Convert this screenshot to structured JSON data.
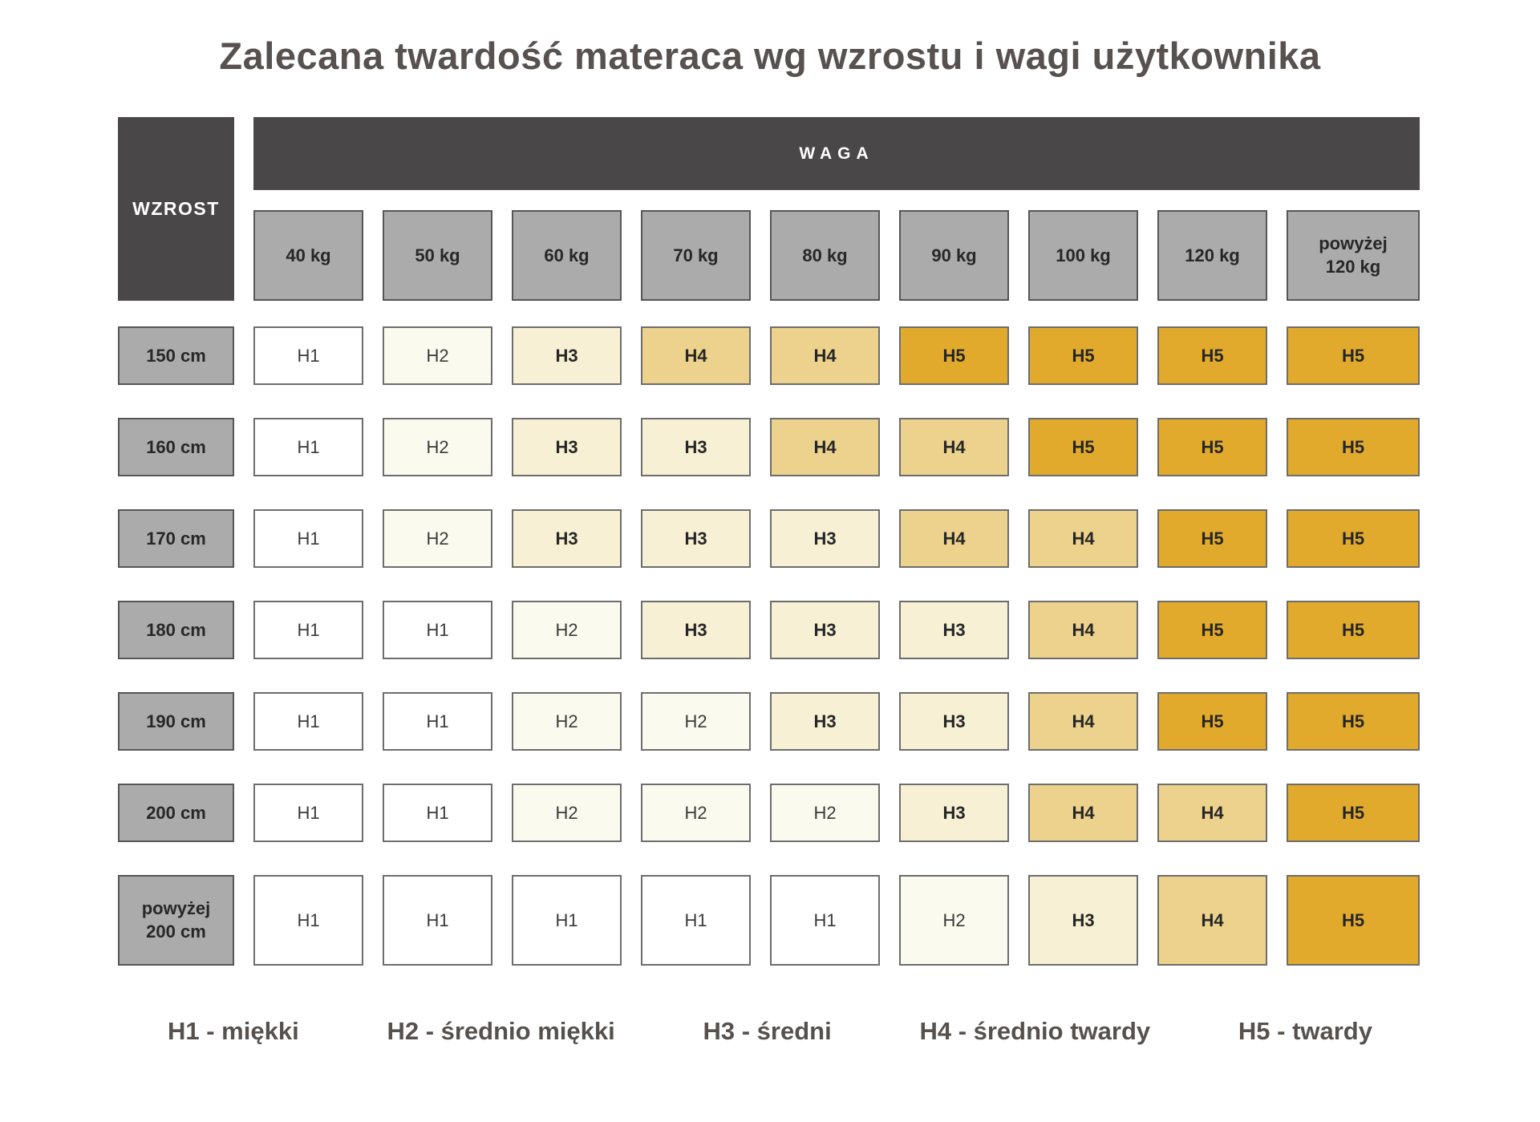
{
  "title": "Zalecana twardość materaca wg wzrostu i wagi użytkownika",
  "header": {
    "corner_label": "WZROST",
    "weight_label": "WAGA"
  },
  "chart_data": {
    "type": "heatmap",
    "title": "Zalecana twardość materaca wg wzrostu i wagi użytkownika",
    "xlabel": "WAGA",
    "ylabel": "WZROST",
    "x_categories": [
      "40 kg",
      "50 kg",
      "60 kg",
      "70 kg",
      "80 kg",
      "90 kg",
      "100 kg",
      "120 kg",
      "powyżej\n120 kg"
    ],
    "y_categories": [
      "150 cm",
      "160 cm",
      "170 cm",
      "180 cm",
      "190 cm",
      "200 cm",
      "powyżej\n200 cm"
    ],
    "values": [
      [
        "H1",
        "H2",
        "H3",
        "H4",
        "H4",
        "H5",
        "H5",
        "H5",
        "H5"
      ],
      [
        "H1",
        "H2",
        "H3",
        "H3",
        "H4",
        "H4",
        "H5",
        "H5",
        "H5"
      ],
      [
        "H1",
        "H2",
        "H3",
        "H3",
        "H3",
        "H4",
        "H4",
        "H5",
        "H5"
      ],
      [
        "H1",
        "H1",
        "H2",
        "H3",
        "H3",
        "H3",
        "H4",
        "H5",
        "H5"
      ],
      [
        "H1",
        "H1",
        "H2",
        "H2",
        "H3",
        "H3",
        "H4",
        "H5",
        "H5"
      ],
      [
        "H1",
        "H1",
        "H2",
        "H2",
        "H2",
        "H3",
        "H4",
        "H4",
        "H5"
      ],
      [
        "H1",
        "H1",
        "H1",
        "H1",
        "H1",
        "H2",
        "H3",
        "H4",
        "H5"
      ]
    ],
    "legend_items": [
      "H1 - miękki",
      "H2 - średnio miękki",
      "H3 - średni",
      "H4 - średnio twardy",
      "H5 - twardy"
    ],
    "legend_position": "bottom",
    "palette": {
      "H1": "#ffffff",
      "H2": "#fbfaee",
      "H3": "#f7f0d4",
      "H4": "#ecd28c",
      "H5": "#e2aa2d"
    }
  },
  "colors": {
    "header_dark": "#494747",
    "header_gray": "#ababab",
    "gray_border": "#565656",
    "cell_border": "#6d6d6d",
    "title_text": "#575150",
    "legend_text": "#57514e",
    "page_background": "#ffffff"
  }
}
